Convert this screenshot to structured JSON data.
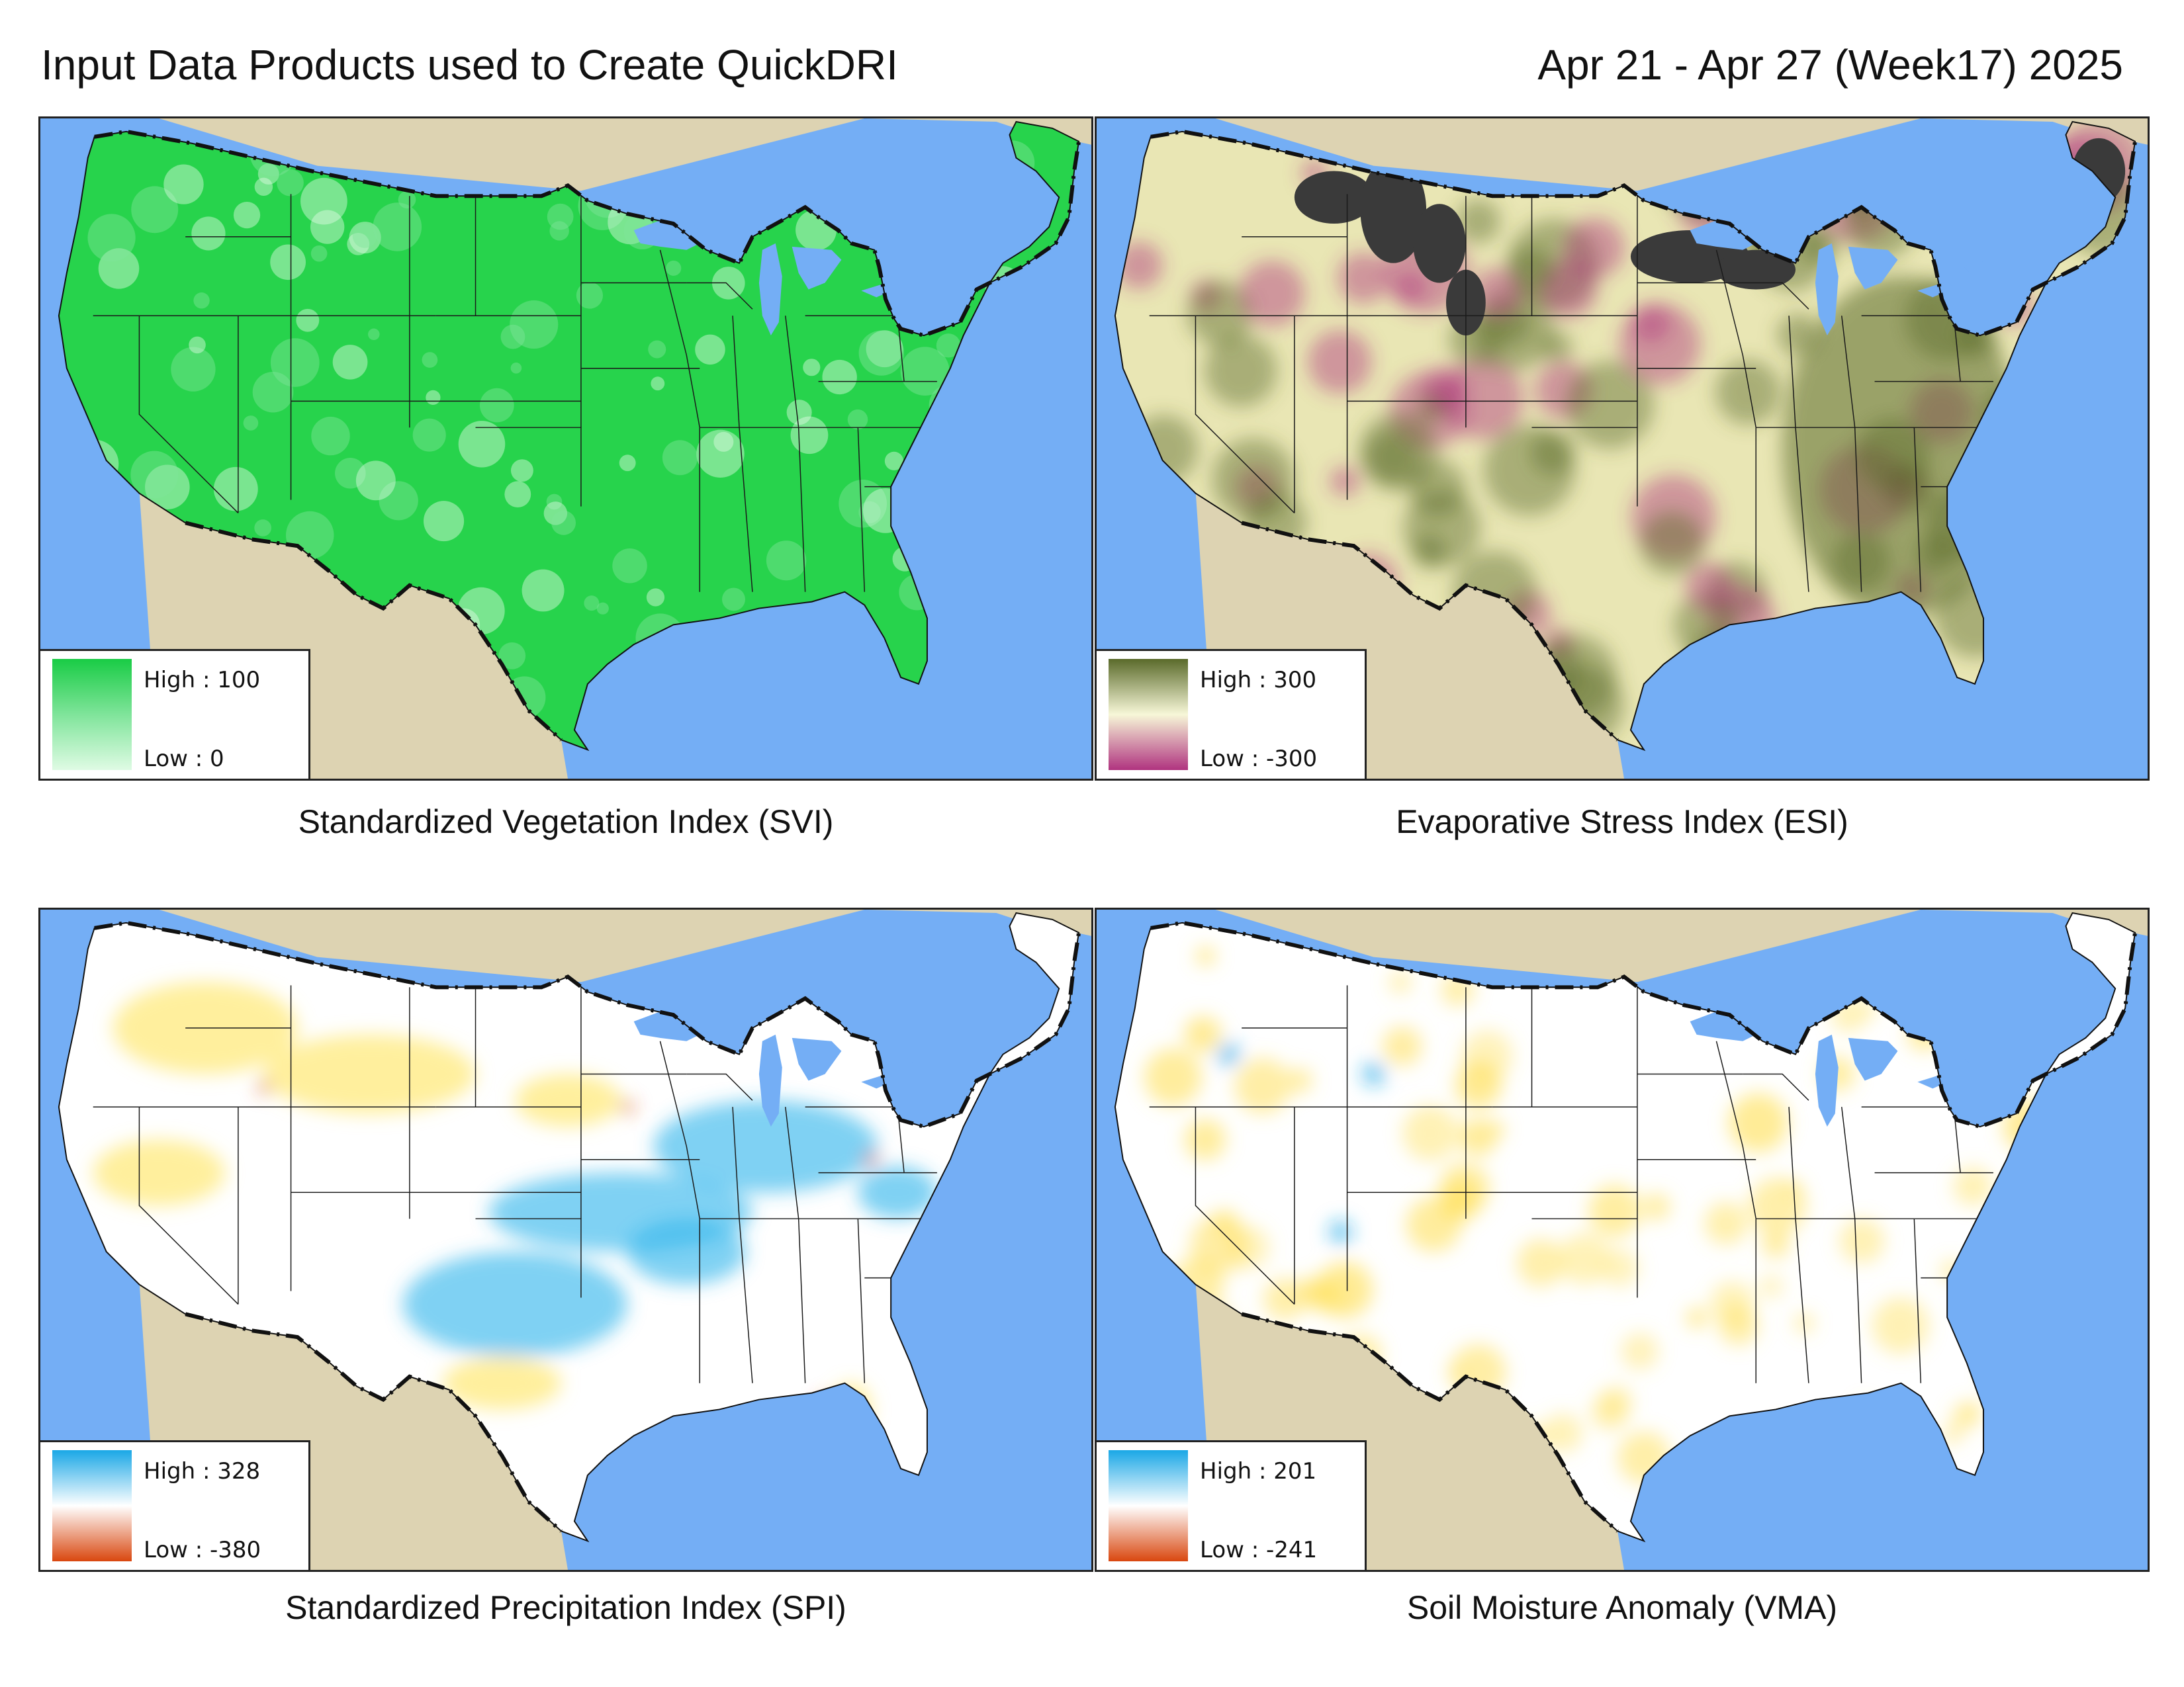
{
  "header": {
    "title": "Input Data Products used to Create QuickDRI",
    "date_range": "Apr 21 - Apr 27 (Week17) 2025"
  },
  "panels": [
    {
      "id": "svi",
      "caption": "Standardized Vegetation Index (SVI)",
      "legend_high": "High : 100",
      "legend_low": "Low : 0",
      "colors": {
        "high": "#19cc45",
        "mid": "#7fe49a",
        "low": "#dffbe4",
        "fill": "#27d34c"
      }
    },
    {
      "id": "esi",
      "caption": "Evaporative Stress Index (ESI)",
      "legend_high": "High : 300",
      "legend_low": "Low : -300",
      "colors": {
        "high": "#5a6a2a",
        "mid": "#f7f7d8",
        "low": "#b0337f",
        "fill": "#e9e6b4",
        "nodata": "#3a3a3a"
      }
    },
    {
      "id": "spi",
      "caption": "Standardized Precipitation Index (SPI)",
      "legend_high": "High : 328",
      "legend_low": "Low : -380",
      "colors": {
        "high": "#1aa7e6",
        "mid": "#ffffff",
        "low": "#d9470f",
        "fill": "#ffffff"
      }
    },
    {
      "id": "vma",
      "caption": "Soil Moisture Anomaly (VMA)",
      "legend_high": "High : 201",
      "legend_low": "Low : -241",
      "colors": {
        "high": "#1aa7e6",
        "mid": "#ffffff",
        "low": "#d9470f",
        "fill": "#ffffff"
      }
    }
  ],
  "map_colors": {
    "water": "#74aef5",
    "land_outside": "#ddd3b2",
    "boundary": "#111111"
  }
}
